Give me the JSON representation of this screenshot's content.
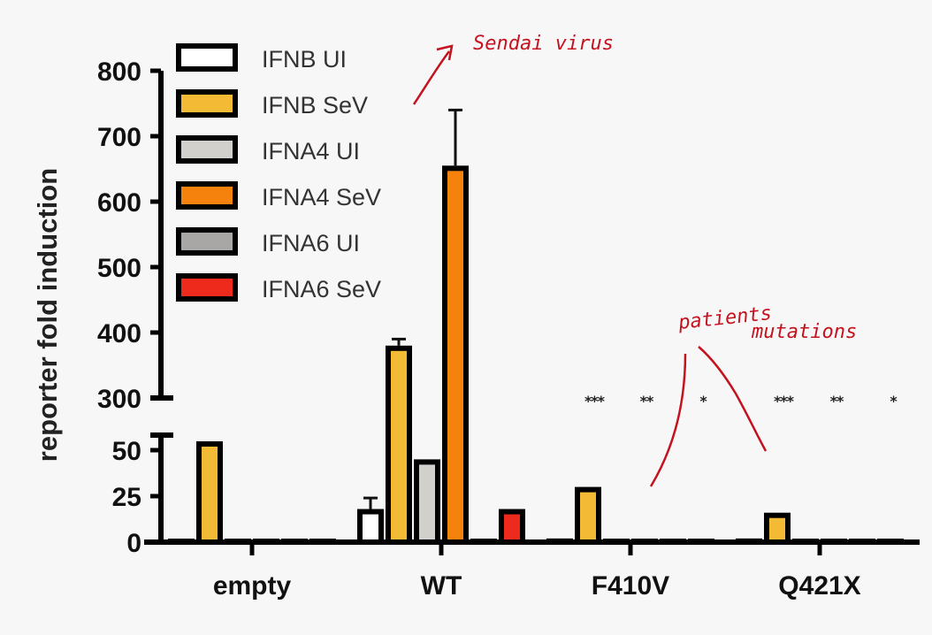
{
  "chart_data": {
    "type": "bar",
    "title": "",
    "xlabel": "",
    "ylabel": "reporter fold induction",
    "axis_break": {
      "lower_range": [
        0,
        50
      ],
      "upper_range": [
        300,
        800
      ]
    },
    "yticks_lower": [
      0,
      25,
      50
    ],
    "yticks_upper": [
      300,
      400,
      500,
      600,
      700,
      800
    ],
    "categories": [
      "empty",
      "WT",
      "F410V",
      "Q421X"
    ],
    "series": [
      {
        "name": "IFNB UI",
        "color": "#ffffff",
        "values": [
          0,
          18,
          2,
          2
        ],
        "errors": [
          0,
          6,
          0,
          0
        ]
      },
      {
        "name": "IFNB SeV",
        "color": "#f3bb35",
        "values": [
          52,
          380,
          30,
          16
        ],
        "errors": [
          0,
          10,
          0,
          0
        ]
      },
      {
        "name": "IFNA4 UI",
        "color": "#d2d0cd",
        "values": [
          0,
          45,
          1,
          1
        ],
        "errors": [
          0,
          0,
          0,
          0
        ]
      },
      {
        "name": "IFNA4 SeV",
        "color": "#f5820d",
        "values": [
          0,
          655,
          1,
          1
        ],
        "errors": [
          0,
          85,
          0,
          0
        ]
      },
      {
        "name": "IFNA6 UI",
        "color": "#a9a7a5",
        "values": [
          0,
          1,
          1,
          1
        ],
        "errors": [
          0,
          0,
          0,
          0
        ]
      },
      {
        "name": "IFNA6 SeV",
        "color": "#ee2a1c",
        "values": [
          0,
          18,
          1,
          1
        ],
        "errors": [
          0,
          0,
          0,
          0
        ]
      }
    ],
    "significance": [
      {
        "category": "F410V",
        "marks": [
          "***",
          "**",
          "*"
        ]
      },
      {
        "category": "Q421X",
        "marks": [
          "***",
          "**",
          "*"
        ]
      }
    ],
    "annotations": [
      "Sendai virus",
      "patients mutations"
    ],
    "legend_position": "upper-left",
    "grid": false
  },
  "legend": [
    {
      "label": "IFNB UI"
    },
    {
      "label": "IFNB SeV"
    },
    {
      "label": "IFNA4 UI"
    },
    {
      "label": "IFNA4 SeV"
    },
    {
      "label": "IFNA6 UI"
    },
    {
      "label": "IFNA6 SeV"
    }
  ],
  "axis": {
    "ylabel": "reporter fold induction",
    "upper_ticks": [
      "800",
      "700",
      "600",
      "500",
      "400",
      "300"
    ],
    "lower_ticks": [
      "50",
      "25",
      "0"
    ],
    "categories": [
      "empty",
      "WT",
      "F410V",
      "Q421X"
    ]
  },
  "significance_marks": [
    "***",
    "**",
    "*",
    "***",
    "**",
    "*"
  ],
  "annotations": {
    "sendai": "Sendai virus",
    "patients": "patients",
    "mutations": "mutations"
  }
}
